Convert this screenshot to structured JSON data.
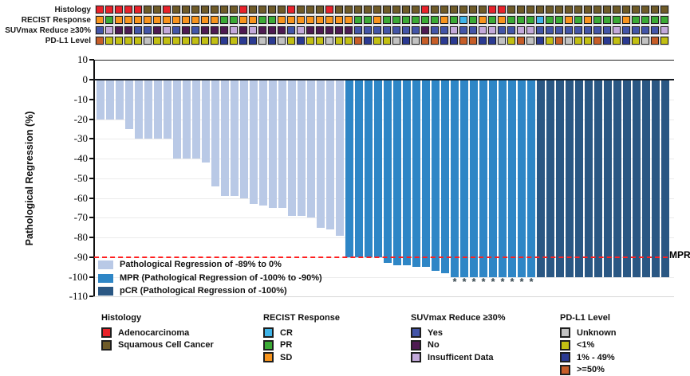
{
  "tracks": {
    "rows": [
      {
        "id": "histology",
        "label": "Histology",
        "colors": {
          "A": "#e8222a",
          "S": "#6f5b28"
        },
        "legend": {
          "A": "Adenocarcinoma",
          "S": "Squamous Cell Cancer"
        },
        "values": [
          "A",
          "A",
          "A",
          "A",
          "A",
          "S",
          "S",
          "A",
          "S",
          "S",
          "S",
          "S",
          "S",
          "S",
          "S",
          "A",
          "S",
          "S",
          "S",
          "S",
          "A",
          "S",
          "S",
          "S",
          "A",
          "S",
          "S",
          "S",
          "S",
          "S",
          "S",
          "S",
          "S",
          "S",
          "A",
          "S",
          "S",
          "S",
          "S",
          "S",
          "S",
          "A",
          "A",
          "S",
          "S",
          "S",
          "S",
          "S",
          "S",
          "S",
          "S",
          "S",
          "S",
          "S",
          "S",
          "S",
          "S",
          "S",
          "S",
          "S"
        ]
      },
      {
        "id": "recist",
        "label": "RECIST Response",
        "colors": {
          "CR": "#3fb4e8",
          "PR": "#3baa35",
          "SD": "#f7941d"
        },
        "legend": {
          "CR": "CR",
          "PR": "PR",
          "SD": "SD"
        },
        "values": [
          "SD",
          "PR",
          "SD",
          "SD",
          "SD",
          "SD",
          "SD",
          "SD",
          "SD",
          "SD",
          "SD",
          "SD",
          "SD",
          "PR",
          "PR",
          "SD",
          "SD",
          "PR",
          "PR",
          "SD",
          "SD",
          "SD",
          "SD",
          "SD",
          "SD",
          "SD",
          "SD",
          "PR",
          "PR",
          "SD",
          "PR",
          "PR",
          "PR",
          "PR",
          "PR",
          "PR",
          "SD",
          "PR",
          "CR",
          "PR",
          "SD",
          "PR",
          "SD",
          "PR",
          "PR",
          "PR",
          "CR",
          "PR",
          "PR",
          "SD",
          "PR",
          "SD",
          "PR",
          "PR",
          "PR",
          "SD",
          "PR",
          "PR",
          "PR",
          "PR"
        ]
      },
      {
        "id": "suvmax",
        "label": "SUVmax Reduce ≥30%",
        "colors": {
          "Y": "#4355a8",
          "N": "#4e1a52",
          "I": "#c3a9da"
        },
        "legend": {
          "Y": "Yes",
          "N": "No",
          "I": "Insufficent Data"
        },
        "values": [
          "Y",
          "I",
          "N",
          "N",
          "Y",
          "Y",
          "N",
          "I",
          "Y",
          "N",
          "Y",
          "N",
          "N",
          "N",
          "I",
          "N",
          "I",
          "N",
          "N",
          "N",
          "Y",
          "I",
          "N",
          "N",
          "N",
          "N",
          "N",
          "Y",
          "Y",
          "Y",
          "Y",
          "Y",
          "Y",
          "Y",
          "N",
          "Y",
          "Y",
          "I",
          "Y",
          "Y",
          "I",
          "I",
          "Y",
          "Y",
          "I",
          "I",
          "Y",
          "Y",
          "Y",
          "Y",
          "Y",
          "Y",
          "Y",
          "Y",
          "I",
          "Y",
          "Y",
          "Y",
          "Y",
          "I"
        ]
      },
      {
        "id": "pdl1",
        "label": "PD-L1 Level",
        "colors": {
          "U": "#c2c2c2",
          "Y": "#c2bf12",
          "B": "#2b3a92",
          "O": "#c65d28"
        },
        "legend": {
          "U": "Unknown",
          "Y": "<1%",
          "B": "1% - 49%",
          "O": ">=50%"
        },
        "values": [
          "O",
          "Y",
          "Y",
          "Y",
          "Y",
          "U",
          "Y",
          "Y",
          "Y",
          "Y",
          "Y",
          "Y",
          "Y",
          "B",
          "Y",
          "B",
          "B",
          "U",
          "B",
          "U",
          "Y",
          "B",
          "Y",
          "Y",
          "U",
          "Y",
          "Y",
          "O",
          "B",
          "Y",
          "Y",
          "U",
          "B",
          "U",
          "O",
          "O",
          "B",
          "B",
          "O",
          "O",
          "B",
          "B",
          "U",
          "Y",
          "O",
          "U",
          "B",
          "Y",
          "O",
          "U",
          "Y",
          "Y",
          "O",
          "B",
          "Y",
          "B",
          "Y",
          "U",
          "O",
          "Y"
        ]
      }
    ]
  },
  "chart_data": {
    "type": "bar",
    "subtype": "waterfall",
    "ylabel": "Pathological Regression (%)",
    "ylim": [
      10,
      -110
    ],
    "yticks": [
      10,
      0,
      -10,
      -20,
      -30,
      -40,
      -50,
      -60,
      -70,
      -80,
      -90,
      -100,
      -110
    ],
    "grid": "horizontal-light",
    "n_bars": 60,
    "values": [
      -20,
      -20,
      -20,
      -25,
      -30,
      -30,
      -30,
      -30,
      -40,
      -40,
      -40,
      -42,
      -54,
      -59,
      -59,
      -60,
      -63,
      -64,
      -65,
      -65,
      -69,
      -69,
      -70,
      -75,
      -76,
      -79,
      -90,
      -90,
      -90,
      -90,
      -93,
      -94,
      -94,
      -95,
      -95,
      -97,
      -98,
      -100,
      -100,
      -100,
      -100,
      -100,
      -100,
      -100,
      -100,
      -100,
      -100,
      -100,
      -100,
      -100,
      -100,
      -100,
      -100,
      -100,
      -100,
      -100,
      -100,
      -100,
      -100,
      -100
    ],
    "groups": [
      "reg",
      "reg",
      "reg",
      "reg",
      "reg",
      "reg",
      "reg",
      "reg",
      "reg",
      "reg",
      "reg",
      "reg",
      "reg",
      "reg",
      "reg",
      "reg",
      "reg",
      "reg",
      "reg",
      "reg",
      "reg",
      "reg",
      "reg",
      "reg",
      "reg",
      "reg",
      "mpr",
      "mpr",
      "mpr",
      "mpr",
      "mpr",
      "mpr",
      "mpr",
      "mpr",
      "mpr",
      "mpr",
      "mpr",
      "mpr",
      "mpr",
      "mpr",
      "mpr",
      "mpr",
      "mpr",
      "mpr",
      "mpr",
      "mpr",
      "pcr",
      "pcr",
      "pcr",
      "pcr",
      "pcr",
      "pcr",
      "pcr",
      "pcr",
      "pcr",
      "pcr",
      "pcr",
      "pcr",
      "pcr",
      "pcr"
    ],
    "group_colors": {
      "reg": "#b9c9e6",
      "mpr": "#2e86c6",
      "pcr": "#2a5783"
    },
    "asterisk_bars": [
      38,
      39,
      40,
      41,
      42,
      43,
      44,
      45,
      46
    ],
    "asterisk_symbol": "*",
    "reference_line": {
      "value": -90,
      "label": "MPR",
      "color": "#ff1f1f",
      "style": "dashed"
    },
    "series_legend": [
      {
        "label": "Pathological Regression of -89% to 0%",
        "color": "#b9c9e6"
      },
      {
        "label": "MPR (Pathological Regression of -100% to -90%)",
        "color": "#2e86c6"
      },
      {
        "label": "pCR (Pathological Regression of -100%)",
        "color": "#2a5783"
      }
    ]
  },
  "bottom_legends": {
    "groups": [
      {
        "title": "Histology",
        "items": [
          {
            "label": "Adenocarcinoma",
            "color": "#e8222a"
          },
          {
            "label": "Squamous Cell Cancer",
            "color": "#6f5b28"
          }
        ]
      },
      {
        "title": "RECIST Response",
        "items": [
          {
            "label": "CR",
            "color": "#3fb4e8"
          },
          {
            "label": "PR",
            "color": "#3baa35"
          },
          {
            "label": "SD",
            "color": "#f7941d"
          }
        ]
      },
      {
        "title": "SUVmax Reduce ≥30%",
        "items": [
          {
            "label": "Yes",
            "color": "#4355a8"
          },
          {
            "label": "No",
            "color": "#4e1a52"
          },
          {
            "label": "Insufficent Data",
            "color": "#c3a9da"
          }
        ]
      },
      {
        "title": "PD-L1 Level",
        "items": [
          {
            "label": "Unknown",
            "color": "#c2c2c2"
          },
          {
            "label": "<1%",
            "color": "#c2bf12"
          },
          {
            "label": "1% - 49%",
            "color": "#2b3a92"
          },
          {
            "label": ">=50%",
            "color": "#c65d28"
          }
        ]
      }
    ]
  }
}
